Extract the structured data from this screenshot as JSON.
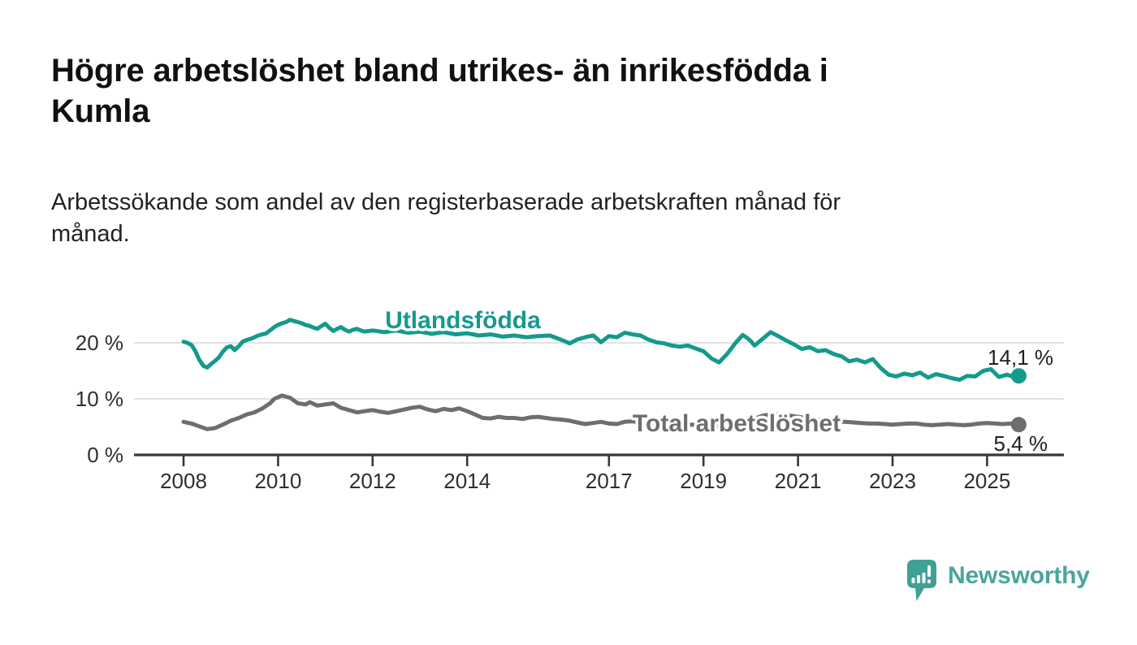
{
  "header": {
    "title": "Högre arbetslöshet bland utrikes- än inrikesfödda i Kumla",
    "title_lines": [
      "Högre arbetslöshet bland utrikes- än inrikesfödda i",
      "Kumla"
    ],
    "subtitle": "Arbetssökande som andel av den registerbaserade arbetskraften månad för månad.",
    "subtitle_lines": [
      "Arbetssökande som andel av den registerbaserade arbetskraften månad för",
      "månad."
    ]
  },
  "chart_data": {
    "type": "line",
    "title": "Högre arbetslöshet bland utrikes- än inrikesfödda i Kumla",
    "subtitle": "Arbetssökande som andel av den registerbaserade arbetskraften månad för månad.",
    "grid": "horizontal-only",
    "legend_position": "inline-labels-on-lines",
    "x_axis": {
      "ticks": [
        2008,
        2010,
        2012,
        2014,
        2017,
        2019,
        2021,
        2023,
        2025
      ],
      "tick_labels": [
        "2008",
        "2010",
        "2012",
        "2014",
        "2017",
        "2019",
        "2021",
        "2023",
        "2025"
      ],
      "range": [
        2007.4,
        2025.95
      ]
    },
    "y_axis": {
      "unit": "%",
      "ticks": [
        0,
        10,
        20
      ],
      "tick_labels": [
        "0 %",
        "10 %",
        "20 %"
      ],
      "range": [
        0,
        27
      ]
    },
    "series": [
      {
        "name": "Utlandsfödda",
        "color": "#149a8d",
        "end_value": 14.1,
        "end_label": "14,1 %",
        "points": [
          [
            2008.0,
            20.2
          ],
          [
            2008.08,
            20.0
          ],
          [
            2008.17,
            19.6
          ],
          [
            2008.25,
            18.5
          ],
          [
            2008.33,
            17.0
          ],
          [
            2008.42,
            15.9
          ],
          [
            2008.5,
            15.6
          ],
          [
            2008.58,
            16.2
          ],
          [
            2008.67,
            16.8
          ],
          [
            2008.75,
            17.4
          ],
          [
            2008.83,
            18.4
          ],
          [
            2008.92,
            19.2
          ],
          [
            2009.0,
            19.4
          ],
          [
            2009.08,
            18.7
          ],
          [
            2009.17,
            19.4
          ],
          [
            2009.25,
            20.2
          ],
          [
            2009.33,
            20.5
          ],
          [
            2009.42,
            20.7
          ],
          [
            2009.5,
            21.0
          ],
          [
            2009.58,
            21.3
          ],
          [
            2009.67,
            21.5
          ],
          [
            2009.75,
            21.7
          ],
          [
            2009.83,
            22.2
          ],
          [
            2009.92,
            22.8
          ],
          [
            2010.0,
            23.2
          ],
          [
            2010.08,
            23.5
          ],
          [
            2010.17,
            23.7
          ],
          [
            2010.25,
            24.1
          ],
          [
            2010.33,
            23.9
          ],
          [
            2010.42,
            23.7
          ],
          [
            2010.5,
            23.5
          ],
          [
            2010.58,
            23.2
          ],
          [
            2010.67,
            23.0
          ],
          [
            2010.75,
            22.7
          ],
          [
            2010.83,
            22.5
          ],
          [
            2010.92,
            23.0
          ],
          [
            2011.0,
            23.4
          ],
          [
            2011.08,
            22.7
          ],
          [
            2011.17,
            22.1
          ],
          [
            2011.25,
            22.5
          ],
          [
            2011.33,
            22.8
          ],
          [
            2011.42,
            22.3
          ],
          [
            2011.5,
            22.0
          ],
          [
            2011.58,
            22.3
          ],
          [
            2011.67,
            22.5
          ],
          [
            2011.75,
            22.2
          ],
          [
            2011.83,
            22.0
          ],
          [
            2011.92,
            22.1
          ],
          [
            2012.0,
            22.2
          ],
          [
            2012.25,
            21.9
          ],
          [
            2012.5,
            22.2
          ],
          [
            2012.75,
            21.8
          ],
          [
            2013.0,
            22.0
          ],
          [
            2013.25,
            21.6
          ],
          [
            2013.5,
            21.9
          ],
          [
            2013.75,
            21.5
          ],
          [
            2014.0,
            21.7
          ],
          [
            2014.25,
            21.3
          ],
          [
            2014.5,
            21.5
          ],
          [
            2014.75,
            21.1
          ],
          [
            2015.0,
            21.3
          ],
          [
            2015.25,
            21.0
          ],
          [
            2015.5,
            21.2
          ],
          [
            2015.75,
            21.3
          ],
          [
            2016.0,
            20.5
          ],
          [
            2016.17,
            19.9
          ],
          [
            2016.33,
            20.6
          ],
          [
            2016.5,
            21.0
          ],
          [
            2016.67,
            21.3
          ],
          [
            2016.83,
            20.1
          ],
          [
            2017.0,
            21.2
          ],
          [
            2017.17,
            21.0
          ],
          [
            2017.33,
            21.8
          ],
          [
            2017.5,
            21.5
          ],
          [
            2017.67,
            21.3
          ],
          [
            2017.83,
            20.6
          ],
          [
            2018.0,
            20.1
          ],
          [
            2018.17,
            19.9
          ],
          [
            2018.33,
            19.5
          ],
          [
            2018.5,
            19.3
          ],
          [
            2018.67,
            19.5
          ],
          [
            2018.83,
            19.0
          ],
          [
            2019.0,
            18.5
          ],
          [
            2019.17,
            17.2
          ],
          [
            2019.33,
            16.5
          ],
          [
            2019.5,
            18.0
          ],
          [
            2019.67,
            19.9
          ],
          [
            2019.83,
            21.4
          ],
          [
            2019.92,
            20.9
          ],
          [
            2020.0,
            20.3
          ],
          [
            2020.08,
            19.5
          ],
          [
            2020.25,
            20.7
          ],
          [
            2020.42,
            21.9
          ],
          [
            2020.58,
            21.2
          ],
          [
            2020.75,
            20.4
          ],
          [
            2020.92,
            19.7
          ],
          [
            2021.08,
            18.9
          ],
          [
            2021.25,
            19.2
          ],
          [
            2021.42,
            18.5
          ],
          [
            2021.58,
            18.7
          ],
          [
            2021.75,
            18.0
          ],
          [
            2021.92,
            17.6
          ],
          [
            2022.08,
            16.7
          ],
          [
            2022.25,
            17.0
          ],
          [
            2022.42,
            16.5
          ],
          [
            2022.58,
            17.1
          ],
          [
            2022.75,
            15.5
          ],
          [
            2022.92,
            14.3
          ],
          [
            2023.08,
            14.0
          ],
          [
            2023.25,
            14.5
          ],
          [
            2023.42,
            14.2
          ],
          [
            2023.58,
            14.7
          ],
          [
            2023.75,
            13.8
          ],
          [
            2023.92,
            14.4
          ],
          [
            2024.08,
            14.1
          ],
          [
            2024.25,
            13.7
          ],
          [
            2024.42,
            13.4
          ],
          [
            2024.58,
            14.1
          ],
          [
            2024.75,
            14.0
          ],
          [
            2024.92,
            15.0
          ],
          [
            2025.08,
            15.3
          ],
          [
            2025.25,
            13.9
          ],
          [
            2025.42,
            14.3
          ],
          [
            2025.58,
            13.9
          ],
          [
            2025.67,
            14.1
          ]
        ]
      },
      {
        "name": "Total arbetslöshet",
        "color": "#6e6e6e",
        "end_value": 5.4,
        "end_label": "5,4 %",
        "points": [
          [
            2008.0,
            5.9
          ],
          [
            2008.17,
            5.6
          ],
          [
            2008.33,
            5.1
          ],
          [
            2008.5,
            4.6
          ],
          [
            2008.67,
            4.8
          ],
          [
            2008.83,
            5.4
          ],
          [
            2009.0,
            6.1
          ],
          [
            2009.17,
            6.6
          ],
          [
            2009.33,
            7.2
          ],
          [
            2009.5,
            7.6
          ],
          [
            2009.67,
            8.3
          ],
          [
            2009.83,
            9.2
          ],
          [
            2009.92,
            10.0
          ],
          [
            2010.08,
            10.6
          ],
          [
            2010.25,
            10.2
          ],
          [
            2010.42,
            9.2
          ],
          [
            2010.58,
            9.0
          ],
          [
            2010.67,
            9.4
          ],
          [
            2010.83,
            8.8
          ],
          [
            2011.0,
            9.0
          ],
          [
            2011.17,
            9.2
          ],
          [
            2011.33,
            8.4
          ],
          [
            2011.5,
            8.0
          ],
          [
            2011.67,
            7.6
          ],
          [
            2011.83,
            7.8
          ],
          [
            2012.0,
            8.0
          ],
          [
            2012.17,
            7.7
          ],
          [
            2012.33,
            7.5
          ],
          [
            2012.5,
            7.8
          ],
          [
            2012.67,
            8.1
          ],
          [
            2012.83,
            8.4
          ],
          [
            2013.0,
            8.6
          ],
          [
            2013.17,
            8.1
          ],
          [
            2013.33,
            7.8
          ],
          [
            2013.5,
            8.2
          ],
          [
            2013.67,
            8.0
          ],
          [
            2013.83,
            8.3
          ],
          [
            2014.0,
            7.8
          ],
          [
            2014.17,
            7.2
          ],
          [
            2014.33,
            6.6
          ],
          [
            2014.5,
            6.5
          ],
          [
            2014.67,
            6.8
          ],
          [
            2014.83,
            6.6
          ],
          [
            2015.0,
            6.6
          ],
          [
            2015.17,
            6.4
          ],
          [
            2015.33,
            6.7
          ],
          [
            2015.5,
            6.8
          ],
          [
            2015.67,
            6.6
          ],
          [
            2015.83,
            6.4
          ],
          [
            2016.0,
            6.3
          ],
          [
            2016.17,
            6.1
          ],
          [
            2016.33,
            5.8
          ],
          [
            2016.5,
            5.5
          ],
          [
            2016.67,
            5.7
          ],
          [
            2016.83,
            5.9
          ],
          [
            2017.0,
            5.6
          ],
          [
            2017.17,
            5.5
          ],
          [
            2017.33,
            5.9
          ],
          [
            2017.5,
            6.0
          ],
          [
            2017.67,
            5.7
          ],
          [
            2017.83,
            5.6
          ],
          [
            2018.0,
            5.5
          ],
          [
            2018.25,
            5.3
          ],
          [
            2018.5,
            5.2
          ],
          [
            2018.75,
            5.4
          ],
          [
            2019.0,
            5.2
          ],
          [
            2019.25,
            5.1
          ],
          [
            2019.5,
            5.5
          ],
          [
            2019.75,
            5.8
          ],
          [
            2020.0,
            6.2
          ],
          [
            2020.25,
            7.0
          ],
          [
            2020.5,
            7.3
          ],
          [
            2020.75,
            7.1
          ],
          [
            2021.0,
            6.8
          ],
          [
            2021.25,
            6.5
          ],
          [
            2021.5,
            6.2
          ],
          [
            2021.75,
            6.0
          ],
          [
            2022.0,
            5.9
          ],
          [
            2022.17,
            5.8
          ],
          [
            2022.33,
            5.7
          ],
          [
            2022.5,
            5.6
          ],
          [
            2022.67,
            5.6
          ],
          [
            2022.83,
            5.5
          ],
          [
            2023.0,
            5.4
          ],
          [
            2023.17,
            5.5
          ],
          [
            2023.33,
            5.6
          ],
          [
            2023.5,
            5.6
          ],
          [
            2023.67,
            5.4
          ],
          [
            2023.83,
            5.3
          ],
          [
            2024.0,
            5.4
          ],
          [
            2024.17,
            5.5
          ],
          [
            2024.33,
            5.4
          ],
          [
            2024.5,
            5.3
          ],
          [
            2024.67,
            5.4
          ],
          [
            2024.83,
            5.6
          ],
          [
            2025.0,
            5.7
          ],
          [
            2025.17,
            5.6
          ],
          [
            2025.33,
            5.5
          ],
          [
            2025.5,
            5.6
          ],
          [
            2025.67,
            5.4
          ]
        ]
      }
    ]
  },
  "footer": {
    "brand": "Newsworthy",
    "brand_color": "#4aa59d",
    "logo_icon": "speech-bubble-bar-chart-icon",
    "logo_color": "#41a096"
  }
}
